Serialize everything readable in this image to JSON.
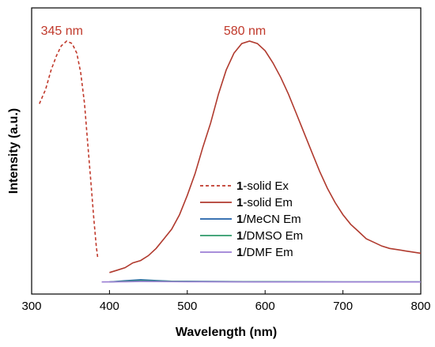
{
  "chart_data": {
    "type": "line",
    "xlabel": "Wavelength (nm)",
    "ylabel": "Intensity (a.u.)",
    "xlim": [
      300,
      800
    ],
    "ylim": [
      0,
      1.05
    ],
    "x_ticks": [
      "300",
      "400",
      "500",
      "600",
      "700",
      "800"
    ],
    "y_ticks_shown": false,
    "legend_position": "lower-center",
    "annotations": [
      {
        "text": "345 nm",
        "x": 345,
        "y": 1.02
      },
      {
        "text": "580 nm",
        "x": 580,
        "y": 1.02
      }
    ],
    "series": [
      {
        "name_bold": "1",
        "name_rest": "-solid Ex",
        "color": "#c0392b",
        "style": "dashed",
        "points": [
          [
            310,
            0.74
          ],
          [
            318,
            0.8
          ],
          [
            325,
            0.88
          ],
          [
            332,
            0.94
          ],
          [
            338,
            0.98
          ],
          [
            345,
            1.0
          ],
          [
            352,
            0.99
          ],
          [
            358,
            0.95
          ],
          [
            363,
            0.87
          ],
          [
            368,
            0.74
          ],
          [
            372,
            0.58
          ],
          [
            376,
            0.42
          ],
          [
            380,
            0.26
          ],
          [
            383,
            0.15
          ],
          [
            385,
            0.1
          ]
        ]
      },
      {
        "name_bold": "1",
        "name_rest": "-solid Em",
        "color": "#b03a2e",
        "style": "solid",
        "points": [
          [
            400,
            0.04
          ],
          [
            410,
            0.05
          ],
          [
            420,
            0.06
          ],
          [
            430,
            0.08
          ],
          [
            440,
            0.09
          ],
          [
            450,
            0.11
          ],
          [
            460,
            0.14
          ],
          [
            470,
            0.18
          ],
          [
            480,
            0.22
          ],
          [
            490,
            0.28
          ],
          [
            500,
            0.36
          ],
          [
            510,
            0.45
          ],
          [
            520,
            0.56
          ],
          [
            530,
            0.66
          ],
          [
            540,
            0.78
          ],
          [
            550,
            0.88
          ],
          [
            560,
            0.95
          ],
          [
            570,
            0.99
          ],
          [
            580,
            1.0
          ],
          [
            590,
            0.99
          ],
          [
            600,
            0.96
          ],
          [
            610,
            0.91
          ],
          [
            620,
            0.85
          ],
          [
            630,
            0.78
          ],
          [
            640,
            0.7
          ],
          [
            650,
            0.62
          ],
          [
            660,
            0.54
          ],
          [
            670,
            0.46
          ],
          [
            680,
            0.39
          ],
          [
            690,
            0.33
          ],
          [
            700,
            0.28
          ],
          [
            710,
            0.24
          ],
          [
            720,
            0.21
          ],
          [
            730,
            0.18
          ],
          [
            740,
            0.165
          ],
          [
            750,
            0.15
          ],
          [
            760,
            0.14
          ],
          [
            770,
            0.135
          ],
          [
            780,
            0.13
          ],
          [
            790,
            0.125
          ],
          [
            800,
            0.12
          ]
        ]
      },
      {
        "name_bold": "1",
        "name_rest": "/MeCN Em",
        "color": "#1f5fa8",
        "style": "solid",
        "points": [
          [
            400,
            0.001
          ],
          [
            420,
            0.006
          ],
          [
            440,
            0.01
          ],
          [
            460,
            0.007
          ],
          [
            480,
            0.004
          ],
          [
            520,
            0.003
          ],
          [
            600,
            0.002
          ],
          [
            700,
            0.001
          ],
          [
            800,
            0.001
          ]
        ]
      },
      {
        "name_bold": "1",
        "name_rest": "/DMSO Em",
        "color": "#2e9a6a",
        "style": "solid",
        "points": [
          [
            400,
            0.001
          ],
          [
            420,
            0.004
          ],
          [
            440,
            0.006
          ],
          [
            460,
            0.005
          ],
          [
            500,
            0.003
          ],
          [
            600,
            0.002
          ],
          [
            700,
            0.001
          ],
          [
            800,
            0.001
          ]
        ]
      },
      {
        "name_bold": "1",
        "name_rest": "/DMF Em",
        "color": "#9b7fd4",
        "style": "solid",
        "points": [
          [
            390,
            0.001
          ],
          [
            420,
            0.002
          ],
          [
            440,
            0.003
          ],
          [
            500,
            0.002
          ],
          [
            600,
            0.001
          ],
          [
            700,
            0.001
          ],
          [
            800,
            0.001
          ]
        ]
      }
    ]
  }
}
